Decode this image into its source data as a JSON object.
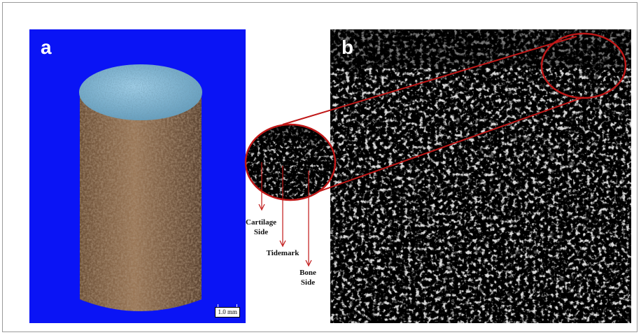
{
  "panels": {
    "a": {
      "letter": "a",
      "scale_label": "1.0 mm"
    },
    "b": {
      "letter": "b"
    }
  },
  "annotations": {
    "cartilage_side": "Cartilage Side",
    "tidemark": "Tidemark",
    "bone_side": "Bone Side"
  },
  "colors": {
    "panel_a_background": "#0a14f5",
    "bone_texture": "#8a6a4e",
    "cartilage_top": "#7fb6d6",
    "highlight_circle": "#c01818"
  }
}
